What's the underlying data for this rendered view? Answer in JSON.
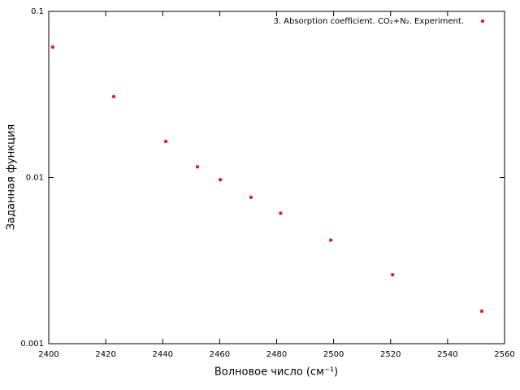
{
  "chart_data": {
    "type": "scatter",
    "xlabel": "Волновое число (см⁻¹)",
    "ylabel": "Заданная функция",
    "xlim": [
      2400,
      2560
    ],
    "xticks": [
      2400,
      2420,
      2440,
      2460,
      2480,
      2500,
      2520,
      2540,
      2560
    ],
    "ylim": [
      0.001,
      0.1
    ],
    "yticks": [
      0.001,
      0.01,
      0.1
    ],
    "ylog": true,
    "legend": "upper right",
    "series": [
      {
        "name": "3. Absorption coefficient. CO₂+N₂. Experiment.",
        "color": "#dd2222",
        "x": [
          2401.4,
          2422.8,
          2441.1,
          2452.2,
          2460.2,
          2471.0,
          2481.4,
          2499.0,
          2520.7,
          2552.0
        ],
        "values": [
          0.061,
          0.0307,
          0.0165,
          0.0116,
          0.0097,
          0.0076,
          0.0061,
          0.0042,
          0.0026,
          0.00157
        ]
      }
    ]
  }
}
